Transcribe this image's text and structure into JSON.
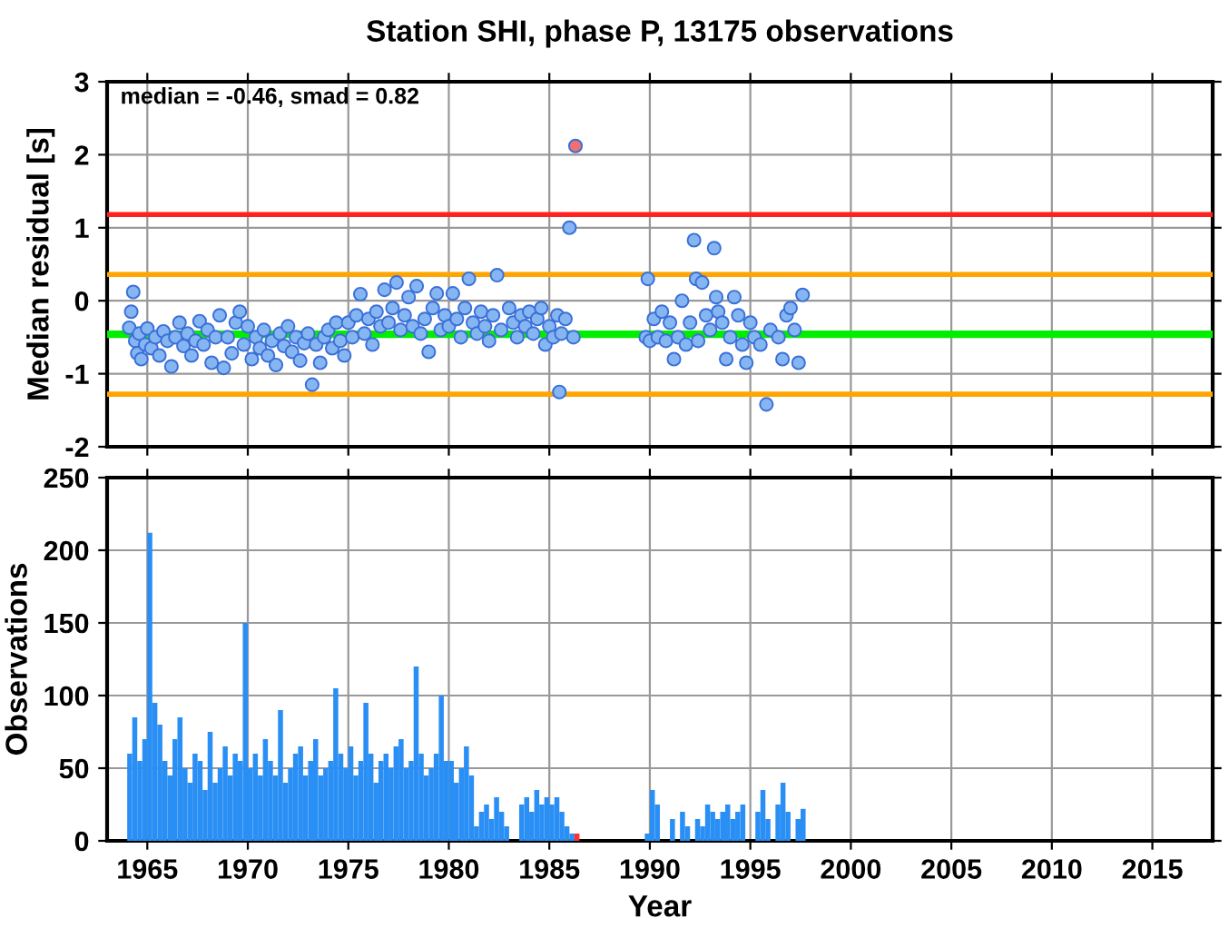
{
  "chart_data": [
    {
      "type": "scatter",
      "title": "Station SHI, phase P, 13175 observations",
      "ylabel": "Median residual [s]",
      "annotations": [
        "median = -0.46, smad = 0.82"
      ],
      "x": [
        1964.1,
        1964.2,
        1964.3,
        1964.4,
        1964.5,
        1964.6,
        1964.7,
        1964.9,
        1965.0,
        1965.2,
        1965.4,
        1965.6,
        1965.8,
        1966.0,
        1966.2,
        1966.4,
        1966.6,
        1966.8,
        1967.0,
        1967.2,
        1967.4,
        1967.6,
        1967.8,
        1968.0,
        1968.2,
        1968.4,
        1968.6,
        1968.8,
        1969.0,
        1969.2,
        1969.4,
        1969.6,
        1969.8,
        1970.0,
        1970.2,
        1970.4,
        1970.6,
        1970.8,
        1971.0,
        1971.2,
        1971.4,
        1971.6,
        1971.8,
        1972.0,
        1972.2,
        1972.4,
        1972.6,
        1972.8,
        1973.0,
        1973.2,
        1973.4,
        1973.6,
        1973.8,
        1974.0,
        1974.2,
        1974.4,
        1974.6,
        1974.8,
        1975.0,
        1975.2,
        1975.4,
        1975.6,
        1975.8,
        1976.0,
        1976.2,
        1976.4,
        1976.6,
        1976.8,
        1977.0,
        1977.2,
        1977.4,
        1977.6,
        1977.8,
        1978.0,
        1978.2,
        1978.4,
        1978.6,
        1978.8,
        1979.0,
        1979.2,
        1979.4,
        1979.6,
        1979.8,
        1980.0,
        1980.2,
        1980.4,
        1980.6,
        1980.8,
        1981.0,
        1981.2,
        1981.4,
        1981.6,
        1981.8,
        1982.0,
        1982.2,
        1982.4,
        1982.6,
        1983.0,
        1983.2,
        1983.4,
        1983.6,
        1983.8,
        1984.0,
        1984.2,
        1984.4,
        1984.6,
        1984.8,
        1985.0,
        1985.2,
        1985.4,
        1985.5,
        1985.6,
        1985.8,
        1986.0,
        1986.2,
        1986.3,
        1989.8,
        1989.9,
        1990.0,
        1990.2,
        1990.4,
        1990.6,
        1990.8,
        1991.0,
        1991.2,
        1991.4,
        1991.6,
        1991.8,
        1992.0,
        1992.2,
        1992.3,
        1992.4,
        1992.6,
        1992.8,
        1993.0,
        1993.2,
        1993.3,
        1993.4,
        1993.6,
        1993.8,
        1994.0,
        1994.2,
        1994.4,
        1994.6,
        1994.8,
        1995.0,
        1995.2,
        1995.5,
        1995.8,
        1996.0,
        1996.4,
        1996.6,
        1996.8,
        1997.0,
        1997.2,
        1997.4,
        1997.6
      ],
      "values": [
        -0.37,
        -0.15,
        0.12,
        -0.55,
        -0.72,
        -0.45,
        -0.8,
        -0.6,
        -0.38,
        -0.65,
        -0.5,
        -0.75,
        -0.42,
        -0.55,
        -0.9,
        -0.5,
        -0.3,
        -0.62,
        -0.45,
        -0.75,
        -0.55,
        -0.28,
        -0.6,
        -0.4,
        -0.85,
        -0.5,
        -0.2,
        -0.92,
        -0.5,
        -0.72,
        -0.3,
        -0.15,
        -0.6,
        -0.35,
        -0.8,
        -0.5,
        -0.65,
        -0.4,
        -0.75,
        -0.55,
        -0.88,
        -0.45,
        -0.62,
        -0.35,
        -0.7,
        -0.5,
        -0.82,
        -0.58,
        -0.45,
        -1.15,
        -0.6,
        -0.85,
        -0.5,
        -0.4,
        -0.65,
        -0.3,
        -0.55,
        -0.75,
        -0.3,
        -0.5,
        -0.2,
        0.09,
        -0.45,
        -0.25,
        -0.6,
        -0.15,
        -0.35,
        0.15,
        -0.3,
        -0.1,
        0.25,
        -0.4,
        -0.2,
        0.05,
        -0.35,
        0.2,
        -0.45,
        -0.25,
        -0.7,
        -0.1,
        0.1,
        -0.4,
        -0.2,
        -0.35,
        0.1,
        -0.25,
        -0.5,
        -0.1,
        0.3,
        -0.3,
        -0.45,
        -0.15,
        -0.35,
        -0.55,
        -0.2,
        0.35,
        -0.4,
        -0.1,
        -0.3,
        -0.5,
        -0.2,
        -0.35,
        -0.15,
        -0.45,
        -0.25,
        -0.1,
        -0.6,
        -0.35,
        -0.5,
        -0.2,
        -1.25,
        -0.45,
        -0.25,
        1.0,
        -0.5,
        2.12,
        -0.5,
        0.3,
        -0.55,
        -0.25,
        -0.5,
        -0.15,
        -0.55,
        -0.3,
        -0.8,
        -0.5,
        0.0,
        -0.6,
        -0.3,
        0.83,
        0.3,
        -0.55,
        0.25,
        -0.2,
        -0.4,
        0.72,
        0.05,
        -0.15,
        -0.3,
        -0.8,
        -0.5,
        0.05,
        -0.2,
        -0.6,
        -0.85,
        -0.3,
        -0.5,
        -0.6,
        -1.42,
        -0.4,
        -0.5,
        -0.8,
        -0.2,
        -0.1,
        -0.4,
        -0.85,
        0.08
      ],
      "colors": [
        "#86b6f2",
        "#86b6f2",
        "#86b6f2",
        "#86b6f2",
        "#86b6f2",
        "#86b6f2",
        "#86b6f2",
        "#86b6f2",
        "#86b6f2",
        "#86b6f2",
        "#86b6f2",
        "#86b6f2",
        "#86b6f2",
        "#86b6f2",
        "#86b6f2",
        "#86b6f2",
        "#86b6f2",
        "#86b6f2",
        "#86b6f2",
        "#86b6f2",
        "#86b6f2",
        "#86b6f2",
        "#86b6f2",
        "#86b6f2",
        "#86b6f2",
        "#86b6f2",
        "#86b6f2",
        "#86b6f2",
        "#86b6f2",
        "#86b6f2",
        "#86b6f2",
        "#86b6f2",
        "#86b6f2",
        "#86b6f2",
        "#86b6f2",
        "#86b6f2",
        "#86b6f2",
        "#86b6f2",
        "#86b6f2",
        "#86b6f2",
        "#86b6f2",
        "#86b6f2",
        "#86b6f2",
        "#86b6f2",
        "#86b6f2",
        "#86b6f2",
        "#86b6f2",
        "#86b6f2",
        "#86b6f2",
        "#86b6f2",
        "#86b6f2",
        "#86b6f2",
        "#86b6f2",
        "#86b6f2",
        "#86b6f2",
        "#86b6f2",
        "#86b6f2",
        "#86b6f2",
        "#86b6f2",
        "#86b6f2",
        "#86b6f2",
        "#86b6f2",
        "#86b6f2",
        "#86b6f2",
        "#86b6f2",
        "#86b6f2",
        "#86b6f2",
        "#86b6f2",
        "#86b6f2",
        "#86b6f2",
        "#86b6f2",
        "#86b6f2",
        "#86b6f2",
        "#86b6f2",
        "#86b6f2",
        "#86b6f2",
        "#86b6f2",
        "#86b6f2",
        "#86b6f2",
        "#86b6f2",
        "#86b6f2",
        "#86b6f2",
        "#86b6f2",
        "#86b6f2",
        "#86b6f2",
        "#86b6f2",
        "#86b6f2",
        "#86b6f2",
        "#86b6f2",
        "#86b6f2",
        "#86b6f2",
        "#86b6f2",
        "#86b6f2",
        "#86b6f2",
        "#86b6f2",
        "#86b6f2",
        "#86b6f2",
        "#86b6f2",
        "#86b6f2",
        "#86b6f2",
        "#86b6f2",
        "#86b6f2",
        "#86b6f2",
        "#86b6f2",
        "#86b6f2",
        "#86b6f2",
        "#86b6f2",
        "#86b6f2",
        "#86b6f2",
        "#86b6f2",
        "#86b6f2",
        "#86b6f2",
        "#86b6f2",
        "#86b6f2",
        "#86b6f2",
        "#f07070",
        "#86b6f2",
        "#86b6f2",
        "#86b6f2",
        "#86b6f2",
        "#86b6f2",
        "#86b6f2",
        "#86b6f2",
        "#86b6f2",
        "#86b6f2",
        "#86b6f2",
        "#86b6f2",
        "#86b6f2",
        "#86b6f2",
        "#86b6f2",
        "#86b6f2",
        "#86b6f2",
        "#86b6f2",
        "#86b6f2",
        "#86b6f2",
        "#86b6f2",
        "#86b6f2",
        "#86b6f2",
        "#86b6f2",
        "#86b6f2",
        "#86b6f2",
        "#86b6f2",
        "#86b6f2",
        "#86b6f2",
        "#86b6f2",
        "#86b6f2",
        "#86b6f2",
        "#86b6f2",
        "#86b6f2",
        "#86b6f2",
        "#86b6f2",
        "#86b6f2",
        "#86b6f2",
        "#86b6f2",
        "#86b6f2",
        "#86b6f2",
        "#86b6f2"
      ],
      "xlim": [
        1963,
        2018
      ],
      "xticks": [
        1965,
        1970,
        1975,
        1980,
        1985,
        1990,
        1995,
        2000,
        2005,
        2010,
        2015
      ],
      "ylim": [
        -2,
        3
      ],
      "yticks": [
        -2,
        -1,
        0,
        1,
        2,
        3
      ],
      "grid": true,
      "tick_labels": "y",
      "ref_lines": [
        {
          "axis": "y",
          "value": 1.18,
          "color": "#ff2020"
        },
        {
          "axis": "y",
          "value": 0.36,
          "color": "#ffa500"
        },
        {
          "axis": "y",
          "value": -0.46,
          "color": "#00ee00"
        },
        {
          "axis": "y",
          "value": -1.28,
          "color": "#ffa500"
        }
      ]
    },
    {
      "type": "histogram",
      "xlabel": "Year",
      "ylabel": "Observations",
      "bins": [
        1964,
        1964.25,
        1964.5,
        1964.75,
        1965,
        1965.25,
        1965.5,
        1965.75,
        1966,
        1966.25,
        1966.5,
        1966.75,
        1967,
        1967.25,
        1967.5,
        1967.75,
        1968,
        1968.25,
        1968.5,
        1968.75,
        1969,
        1969.25,
        1969.5,
        1969.75,
        1970,
        1970.25,
        1970.5,
        1970.75,
        1971,
        1971.25,
        1971.5,
        1971.75,
        1972,
        1972.25,
        1972.5,
        1972.75,
        1973,
        1973.25,
        1973.5,
        1973.75,
        1974,
        1974.25,
        1974.5,
        1974.75,
        1975,
        1975.25,
        1975.5,
        1975.75,
        1976,
        1976.25,
        1976.5,
        1976.75,
        1977,
        1977.25,
        1977.5,
        1977.75,
        1978,
        1978.25,
        1978.5,
        1978.75,
        1979,
        1979.25,
        1979.5,
        1979.75,
        1980,
        1980.25,
        1980.5,
        1980.75,
        1981,
        1981.25,
        1981.5,
        1981.75,
        1982,
        1982.25,
        1982.5,
        1982.75,
        1983,
        1983.25,
        1983.5,
        1983.75,
        1984,
        1984.25,
        1984.5,
        1984.75,
        1985,
        1985.25,
        1985.5,
        1985.75,
        1986,
        1986.25,
        1986.5,
        1986.75,
        1987,
        1987.25,
        1987.5,
        1987.75,
        1988,
        1988.25,
        1988.5,
        1988.75,
        1989,
        1989.25,
        1989.5,
        1989.75,
        1990,
        1990.25,
        1990.5,
        1990.75,
        1991,
        1991.25,
        1991.5,
        1991.75,
        1992,
        1992.25,
        1992.5,
        1992.75,
        1993,
        1993.25,
        1993.5,
        1993.75,
        1994,
        1994.25,
        1994.5,
        1994.75,
        1995,
        1995.25,
        1995.5,
        1995.75,
        1996,
        1996.25,
        1996.5,
        1996.75,
        1997,
        1997.25,
        1997.5,
        1997.75,
        1998
      ],
      "values": [
        60,
        85,
        55,
        70,
        212,
        95,
        80,
        55,
        45,
        70,
        85,
        50,
        40,
        60,
        55,
        35,
        75,
        40,
        50,
        65,
        45,
        60,
        55,
        150,
        50,
        60,
        45,
        70,
        55,
        45,
        90,
        40,
        50,
        60,
        65,
        45,
        55,
        70,
        45,
        50,
        55,
        105,
        60,
        50,
        65,
        45,
        55,
        95,
        60,
        40,
        55,
        60,
        50,
        65,
        70,
        50,
        55,
        120,
        60,
        45,
        50,
        60,
        100,
        55,
        55,
        40,
        50,
        65,
        45,
        10,
        20,
        25,
        15,
        30,
        20,
        10,
        0,
        0,
        25,
        30,
        20,
        35,
        25,
        30,
        25,
        30,
        20,
        10,
        5,
        5,
        0,
        0,
        0,
        0,
        0,
        0,
        0,
        0,
        0,
        0,
        0,
        0,
        0,
        5,
        35,
        25,
        0,
        0,
        15,
        0,
        20,
        10,
        0,
        15,
        10,
        25,
        20,
        15,
        20,
        25,
        15,
        20,
        25,
        0,
        0,
        20,
        35,
        15,
        0,
        25,
        40,
        20,
        0,
        15,
        22,
        0
      ],
      "colors": [
        "#2a8ff5",
        "#2a8ff5",
        "#2a8ff5",
        "#2a8ff5",
        "#2a8ff5",
        "#2a8ff5",
        "#2a8ff5",
        "#2a8ff5",
        "#2a8ff5",
        "#2a8ff5",
        "#2a8ff5",
        "#2a8ff5",
        "#2a8ff5",
        "#2a8ff5",
        "#2a8ff5",
        "#2a8ff5",
        "#2a8ff5",
        "#2a8ff5",
        "#2a8ff5",
        "#2a8ff5",
        "#2a8ff5",
        "#2a8ff5",
        "#2a8ff5",
        "#2a8ff5",
        "#2a8ff5",
        "#2a8ff5",
        "#2a8ff5",
        "#2a8ff5",
        "#2a8ff5",
        "#2a8ff5",
        "#2a8ff5",
        "#2a8ff5",
        "#2a8ff5",
        "#2a8ff5",
        "#2a8ff5",
        "#2a8ff5",
        "#2a8ff5",
        "#2a8ff5",
        "#2a8ff5",
        "#2a8ff5",
        "#2a8ff5",
        "#2a8ff5",
        "#2a8ff5",
        "#2a8ff5",
        "#2a8ff5",
        "#2a8ff5",
        "#2a8ff5",
        "#2a8ff5",
        "#2a8ff5",
        "#2a8ff5",
        "#2a8ff5",
        "#2a8ff5",
        "#2a8ff5",
        "#2a8ff5",
        "#2a8ff5",
        "#2a8ff5",
        "#2a8ff5",
        "#2a8ff5",
        "#2a8ff5",
        "#2a8ff5",
        "#2a8ff5",
        "#2a8ff5",
        "#2a8ff5",
        "#2a8ff5",
        "#2a8ff5",
        "#2a8ff5",
        "#2a8ff5",
        "#2a8ff5",
        "#2a8ff5",
        "#2a8ff5",
        "#2a8ff5",
        "#2a8ff5",
        "#2a8ff5",
        "#2a8ff5",
        "#2a8ff5",
        "#2a8ff5",
        "#2a8ff5",
        "#2a8ff5",
        "#2a8ff5",
        "#2a8ff5",
        "#2a8ff5",
        "#2a8ff5",
        "#2a8ff5",
        "#2a8ff5",
        "#2a8ff5",
        "#2a8ff5",
        "#2a8ff5",
        "#2a8ff5",
        "#2a8ff5",
        "#ff3030",
        "#2a8ff5",
        "#2a8ff5",
        "#2a8ff5",
        "#2a8ff5",
        "#2a8ff5",
        "#2a8ff5",
        "#2a8ff5",
        "#2a8ff5",
        "#2a8ff5",
        "#2a8ff5",
        "#2a8ff5",
        "#2a8ff5",
        "#2a8ff5",
        "#2a8ff5",
        "#2a8ff5",
        "#2a8ff5",
        "#2a8ff5",
        "#2a8ff5",
        "#2a8ff5",
        "#2a8ff5",
        "#2a8ff5",
        "#2a8ff5",
        "#2a8ff5",
        "#2a8ff5",
        "#2a8ff5",
        "#2a8ff5",
        "#2a8ff5",
        "#2a8ff5",
        "#2a8ff5",
        "#2a8ff5",
        "#2a8ff5",
        "#2a8ff5",
        "#2a8ff5",
        "#2a8ff5",
        "#2a8ff5",
        "#2a8ff5",
        "#2a8ff5",
        "#2a8ff5",
        "#2a8ff5",
        "#2a8ff5",
        "#2a8ff5",
        "#2a8ff5",
        "#2a8ff5",
        "#2a8ff5",
        "#2a8ff5",
        "#2a8ff5"
      ],
      "xlim": [
        1963,
        2018
      ],
      "xticks": [
        1965,
        1970,
        1975,
        1980,
        1985,
        1990,
        1995,
        2000,
        2005,
        2010,
        2015
      ],
      "ylim": [
        0,
        250
      ],
      "yticks": [
        0,
        50,
        100,
        150,
        200,
        250
      ],
      "grid": true
    }
  ]
}
